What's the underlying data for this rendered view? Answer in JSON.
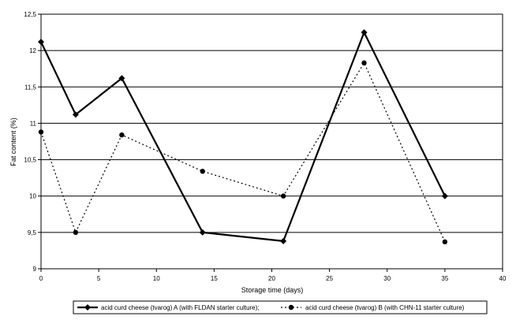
{
  "chart_data": {
    "type": "line",
    "title": "",
    "xlabel": "Storage time (days)",
    "ylabel": "Fat content (%)",
    "xlim": [
      0,
      40
    ],
    "ylim": [
      9,
      12.5
    ],
    "x_ticks": [
      0,
      5,
      10,
      15,
      20,
      25,
      30,
      35,
      40
    ],
    "x_tick_labels": [
      "0",
      "5",
      "10",
      "15",
      "20",
      "25",
      "30",
      "35",
      "40"
    ],
    "y_ticks": [
      9,
      9.5,
      10,
      10.5,
      11,
      11.5,
      12,
      12.5
    ],
    "y_tick_labels": [
      "9",
      "9,5",
      "10",
      "10,5",
      "11",
      "11,5",
      "12",
      "12,5"
    ],
    "grid": "horizontal",
    "legend_position": "bottom",
    "series": [
      {
        "name": "acid curd cheese (tvarog) A (with FLDAN starter culture);",
        "x": [
          0,
          3,
          7,
          14,
          21,
          28,
          35
        ],
        "values": [
          12.12,
          11.12,
          11.62,
          9.5,
          9.38,
          12.25,
          10.0
        ],
        "style": "solid",
        "marker": "diamond",
        "color": "#000000"
      },
      {
        "name": "acid curd cheese (tvarog) B (with CHN-11 starter culture)",
        "x": [
          0,
          3,
          7,
          14,
          21,
          28,
          35
        ],
        "values": [
          10.88,
          9.5,
          10.84,
          10.34,
          10.0,
          11.83,
          9.37
        ],
        "style": "dashed",
        "marker": "circle",
        "color": "#000000"
      }
    ]
  }
}
